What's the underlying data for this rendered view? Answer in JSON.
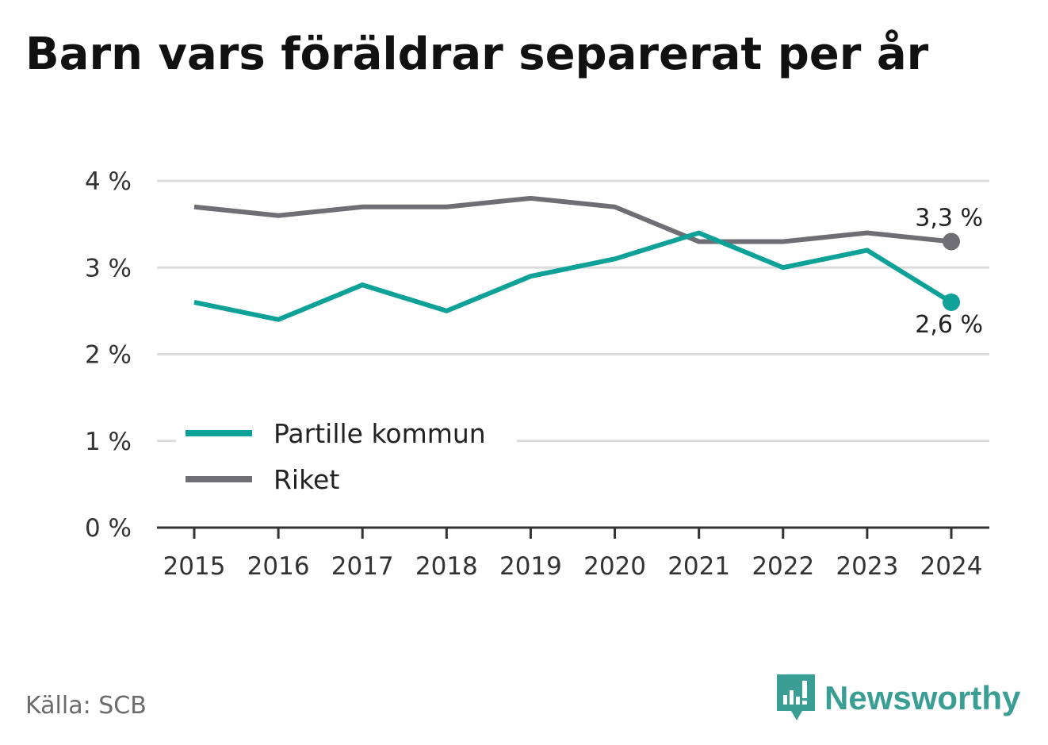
{
  "title": "Barn vars föräldrar separerat per år",
  "source": "Källa: SCB",
  "brand": {
    "name": "Newsworthy",
    "icon": "newsworthy-logo-icon",
    "color": "#3a9e94"
  },
  "colors": {
    "partille": "#0ea198",
    "riket": "#6f6e74",
    "grid": "#dcdcdc",
    "axis": "#333333"
  },
  "chart_data": {
    "type": "line",
    "title": "Barn vars föräldrar separerat per år",
    "categories": [
      "2015",
      "2016",
      "2017",
      "2018",
      "2019",
      "2020",
      "2021",
      "2022",
      "2023",
      "2024"
    ],
    "series": [
      {
        "name": "Partille kommun",
        "values": [
          2.6,
          2.4,
          2.8,
          2.5,
          2.9,
          3.1,
          3.4,
          3.0,
          3.2,
          2.6
        ],
        "end_label": "2,6 %"
      },
      {
        "name": "Riket",
        "values": [
          3.7,
          3.6,
          3.7,
          3.7,
          3.8,
          3.7,
          3.3,
          3.3,
          3.4,
          3.3
        ],
        "end_label": "3,3 %"
      }
    ],
    "yticks": [
      0,
      1,
      2,
      3,
      4
    ],
    "ytick_labels": [
      "0 %",
      "1 %",
      "2 %",
      "3 %",
      "4 %"
    ],
    "ylim": [
      0,
      4
    ],
    "grid": true,
    "legend": "bottom-left"
  }
}
